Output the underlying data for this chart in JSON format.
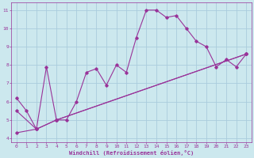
{
  "bg_color": "#cce8ee",
  "grid_color": "#aaccdd",
  "line_color": "#993399",
  "marker_color": "#993399",
  "xlabel": "Windchill (Refroidissement éolien,°C)",
  "xlabel_color": "#993399",
  "tick_color": "#993399",
  "xlim_min": -0.5,
  "xlim_max": 23.5,
  "ylim_min": 3.8,
  "ylim_max": 11.4,
  "yticks": [
    4,
    5,
    6,
    7,
    8,
    9,
    10,
    11
  ],
  "xticks": [
    0,
    1,
    2,
    3,
    4,
    5,
    6,
    7,
    8,
    9,
    10,
    11,
    12,
    13,
    14,
    15,
    16,
    17,
    18,
    19,
    20,
    21,
    22,
    23
  ],
  "curve1_x": [
    0,
    1,
    2,
    3,
    4,
    5,
    6,
    7,
    8,
    9,
    10,
    11,
    12,
    13,
    14,
    15,
    16,
    17,
    18,
    19,
    20,
    21,
    22,
    23
  ],
  "curve1_y": [
    6.2,
    5.5,
    4.5,
    7.9,
    5.0,
    5.0,
    6.0,
    7.6,
    7.8,
    6.9,
    8.0,
    7.6,
    9.5,
    11.0,
    11.0,
    10.6,
    10.7,
    10.0,
    9.3,
    9.0,
    7.9,
    8.3,
    7.9,
    8.6
  ],
  "curve2_x": [
    0,
    2,
    4,
    23
  ],
  "curve2_y": [
    4.3,
    4.5,
    5.0,
    8.6
  ],
  "curve3_x": [
    0,
    2,
    4,
    23
  ],
  "curve3_y": [
    5.5,
    4.5,
    5.0,
    8.6
  ]
}
